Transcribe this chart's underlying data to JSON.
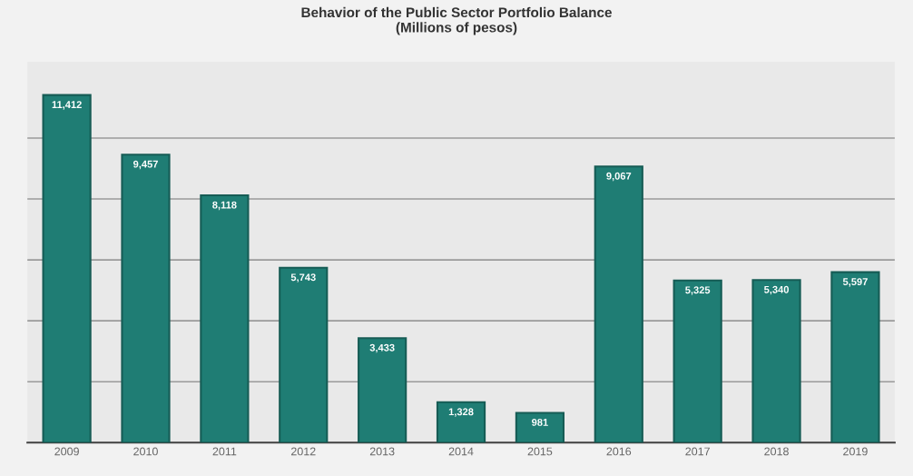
{
  "chart_data": {
    "type": "bar",
    "title": "Behavior of the Public Sector Portfolio Balance\n(Millions of pesos)",
    "categories": [
      "2009",
      "2010",
      "2011",
      "2012",
      "2013",
      "2014",
      "2015",
      "2016",
      "2017",
      "2018",
      "2019"
    ],
    "values": [
      11412,
      9457,
      8118,
      5743,
      3433,
      1328,
      981,
      9067,
      5325,
      5340,
      5597
    ],
    "value_labels": [
      "11,412",
      "9,457",
      "8,118",
      "5,743",
      "3,433",
      "1,328",
      "981",
      "9,067",
      "5,325",
      "5,340",
      "5,597"
    ],
    "color": "#1f7d74",
    "grid": "y",
    "tick_labels": "x",
    "ylim": [
      0,
      12500
    ],
    "yticks": [
      {
        "value": 0,
        "label": null
      },
      {
        "value": 2000,
        "label": null
      },
      {
        "value": 4000,
        "label": null
      },
      {
        "value": 6000,
        "label": null
      },
      {
        "value": 8000,
        "label": null
      },
      {
        "value": 10000,
        "label": null
      }
    ]
  }
}
